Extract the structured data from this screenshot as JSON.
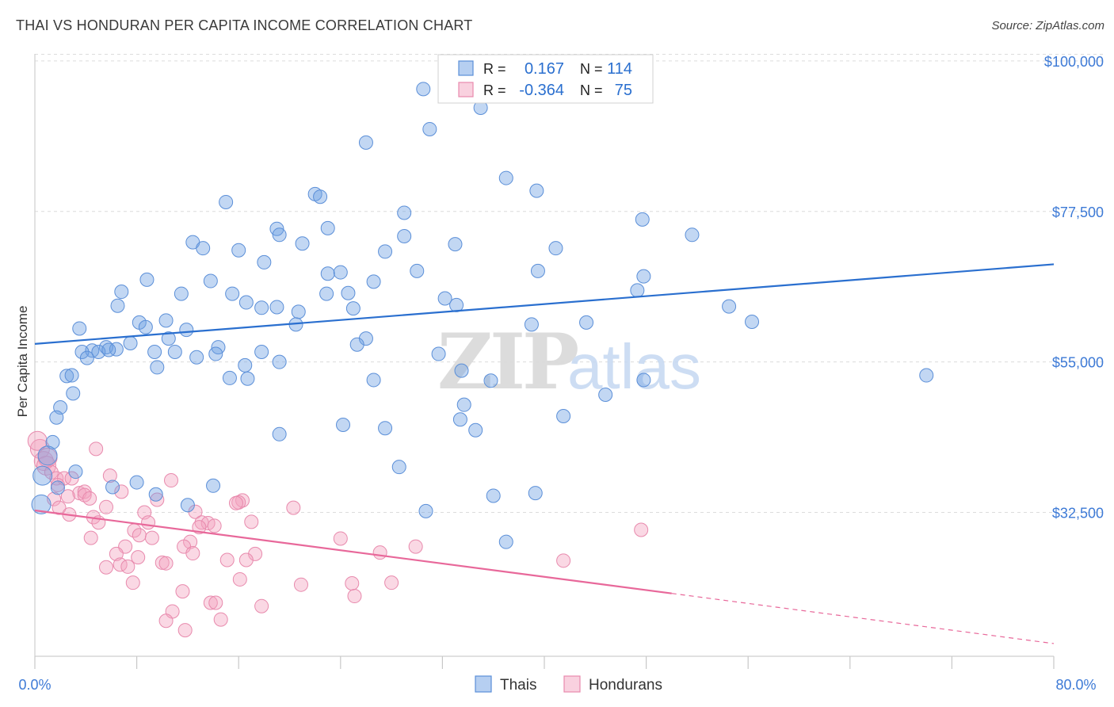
{
  "header": {
    "title": "THAI VS HONDURAN PER CAPITA INCOME CORRELATION CHART",
    "source": "Source: ZipAtlas.com"
  },
  "watermark": {
    "zip": "ZIP",
    "atlas": "atlas"
  },
  "colors": {
    "thais": "#6ea0e3",
    "thais_line": "#2a6fcf",
    "hondurans": "#f4a3bf",
    "hondurans_line": "#e8689a",
    "axis_label": "#3d7ad6",
    "grid": "#dcdcdc"
  },
  "stats_legend": [
    {
      "r_label": "R =",
      "r_value": "0.167",
      "n_label": "N =",
      "n_value": "114"
    },
    {
      "r_label": "R =",
      "r_value": "-0.364",
      "n_label": "N =",
      "n_value": "75"
    }
  ],
  "chart_data": {
    "type": "scatter",
    "ylabel": "Per Capita Income",
    "xlim": [
      0,
      80
    ],
    "ylim": [
      11000,
      102000
    ],
    "x_tick_labels": [
      "0.0%",
      "80.0%"
    ],
    "y_ticks": [
      {
        "value": 32500,
        "label": "$32,500"
      },
      {
        "value": 55000,
        "label": "$55,000"
      },
      {
        "value": 77500,
        "label": "$77,500"
      },
      {
        "value": 100000,
        "label": "$100,000"
      }
    ],
    "grid": true,
    "legend_position": "bottom",
    "series": [
      {
        "name": "Thais",
        "trend": {
          "x0": 0,
          "y0": 57700,
          "x1": 80,
          "y1": 69600
        },
        "points": [
          [
            30.5,
            95.8
          ],
          [
            35.0,
            93.0
          ],
          [
            31.0,
            89.8
          ],
          [
            26.0,
            87.8
          ],
          [
            37.0,
            82.5
          ],
          [
            39.4,
            80.6
          ],
          [
            22.0,
            80.1
          ],
          [
            22.4,
            79.7
          ],
          [
            15.0,
            78.9
          ],
          [
            29.0,
            77.3
          ],
          [
            47.7,
            76.3
          ],
          [
            19.0,
            74.9
          ],
          [
            23.0,
            75.0
          ],
          [
            29.0,
            73.8
          ],
          [
            51.6,
            74.0
          ],
          [
            19.2,
            74.0
          ],
          [
            21.0,
            72.7
          ],
          [
            33.0,
            72.6
          ],
          [
            12.4,
            72.9
          ],
          [
            13.2,
            72.0
          ],
          [
            40.9,
            72.0
          ],
          [
            16.0,
            71.7
          ],
          [
            27.5,
            71.5
          ],
          [
            18.0,
            69.9
          ],
          [
            30.0,
            68.6
          ],
          [
            39.5,
            68.6
          ],
          [
            23.0,
            68.2
          ],
          [
            24.0,
            68.4
          ],
          [
            47.8,
            67.8
          ],
          [
            8.8,
            67.3
          ],
          [
            13.8,
            67.1
          ],
          [
            26.6,
            67.0
          ],
          [
            6.8,
            65.5
          ],
          [
            11.5,
            65.2
          ],
          [
            15.5,
            65.2
          ],
          [
            22.9,
            65.2
          ],
          [
            24.6,
            65.3
          ],
          [
            47.3,
            65.7
          ],
          [
            32.2,
            64.5
          ],
          [
            16.6,
            63.9
          ],
          [
            6.5,
            63.4
          ],
          [
            17.8,
            63.1
          ],
          [
            19.0,
            63.2
          ],
          [
            25.0,
            63.0
          ],
          [
            33.1,
            63.5
          ],
          [
            20.7,
            62.5
          ],
          [
            54.5,
            63.3
          ],
          [
            56.3,
            61.0
          ],
          [
            10.3,
            61.2
          ],
          [
            8.2,
            60.9
          ],
          [
            8.7,
            60.2
          ],
          [
            20.5,
            60.6
          ],
          [
            39.0,
            60.6
          ],
          [
            43.3,
            60.9
          ],
          [
            3.5,
            60.0
          ],
          [
            11.9,
            59.8
          ],
          [
            26.0,
            58.5
          ],
          [
            10.5,
            58.5
          ],
          [
            7.5,
            57.8
          ],
          [
            25.3,
            57.6
          ],
          [
            5.6,
            57.2
          ],
          [
            14.4,
            57.2
          ],
          [
            4.5,
            56.7
          ],
          [
            6.4,
            56.9
          ],
          [
            3.7,
            56.5
          ],
          [
            5.0,
            56.5
          ],
          [
            5.8,
            56.8
          ],
          [
            9.4,
            56.5
          ],
          [
            11.0,
            56.5
          ],
          [
            17.8,
            56.5
          ],
          [
            4.1,
            55.6
          ],
          [
            12.7,
            55.7
          ],
          [
            14.2,
            56.2
          ],
          [
            31.7,
            56.2
          ],
          [
            16.5,
            54.5
          ],
          [
            19.2,
            55.0
          ],
          [
            9.6,
            54.2
          ],
          [
            33.5,
            53.7
          ],
          [
            2.5,
            52.9
          ],
          [
            2.9,
            53.0
          ],
          [
            15.3,
            52.6
          ],
          [
            16.7,
            52.5
          ],
          [
            26.6,
            52.3
          ],
          [
            47.8,
            52.3
          ],
          [
            35.8,
            52.2
          ],
          [
            70.0,
            53.0
          ],
          [
            3.0,
            50.3
          ],
          [
            44.8,
            50.1
          ],
          [
            2.0,
            48.2
          ],
          [
            33.7,
            48.6
          ],
          [
            1.7,
            46.7
          ],
          [
            33.4,
            46.4
          ],
          [
            41.5,
            46.9
          ],
          [
            24.2,
            45.6
          ],
          [
            27.5,
            45.1
          ],
          [
            19.2,
            44.2
          ],
          [
            34.6,
            44.8
          ],
          [
            1.4,
            43.0
          ],
          [
            1.0,
            41.0
          ],
          [
            28.6,
            39.3
          ],
          [
            36.0,
            35.0
          ],
          [
            39.3,
            35.4
          ],
          [
            30.7,
            32.7
          ],
          [
            37.0,
            28.1
          ],
          [
            0.5,
            33.7
          ],
          [
            0.6,
            38.0
          ],
          [
            9.5,
            35.2
          ],
          [
            12.0,
            33.6
          ],
          [
            3.2,
            38.6
          ],
          [
            6.1,
            36.3
          ],
          [
            1.8,
            36.2
          ],
          [
            8.0,
            37.0
          ],
          [
            14.0,
            36.5
          ]
        ]
      },
      {
        "name": "Hondurans",
        "trend": {
          "x0": 0,
          "y0": 32800,
          "x1": 50.0,
          "y1": 20400,
          "dash_x1": 80,
          "dash_y1": 12900
        },
        "points": [
          [
            0.4,
            42.0
          ],
          [
            4.8,
            42.0
          ],
          [
            0.7,
            40.2
          ],
          [
            0.9,
            39.5
          ],
          [
            1.3,
            38.5
          ],
          [
            5.9,
            38.0
          ],
          [
            1.7,
            37.6
          ],
          [
            2.3,
            37.6
          ],
          [
            2.9,
            37.6
          ],
          [
            10.7,
            37.3
          ],
          [
            1.8,
            36.6
          ],
          [
            6.8,
            35.6
          ],
          [
            3.5,
            35.4
          ],
          [
            3.9,
            35.6
          ],
          [
            3.9,
            35.1
          ],
          [
            2.6,
            34.9
          ],
          [
            4.3,
            34.6
          ],
          [
            1.5,
            34.5
          ],
          [
            9.6,
            34.4
          ],
          [
            16.3,
            34.3
          ],
          [
            16.0,
            34.0
          ],
          [
            15.8,
            33.9
          ],
          [
            20.3,
            33.2
          ],
          [
            1.9,
            33.2
          ],
          [
            2.7,
            32.2
          ],
          [
            12.6,
            32.6
          ],
          [
            8.6,
            32.5
          ],
          [
            5.6,
            33.3
          ],
          [
            4.6,
            31.8
          ],
          [
            5.0,
            31.0
          ],
          [
            8.9,
            31.0
          ],
          [
            13.1,
            31.0
          ],
          [
            13.6,
            30.9
          ],
          [
            12.9,
            30.3
          ],
          [
            14.1,
            30.5
          ],
          [
            17.0,
            31.1
          ],
          [
            7.8,
            29.8
          ],
          [
            8.2,
            29.1
          ],
          [
            9.2,
            28.7
          ],
          [
            4.4,
            28.7
          ],
          [
            12.2,
            28.1
          ],
          [
            24.0,
            28.6
          ],
          [
            11.7,
            27.4
          ],
          [
            7.1,
            27.4
          ],
          [
            6.4,
            26.3
          ],
          [
            12.4,
            26.4
          ],
          [
            17.3,
            26.3
          ],
          [
            27.1,
            26.5
          ],
          [
            29.9,
            27.4
          ],
          [
            41.5,
            25.3
          ],
          [
            47.6,
            29.9
          ],
          [
            8.1,
            25.8
          ],
          [
            15.1,
            25.4
          ],
          [
            16.6,
            25.4
          ],
          [
            10.0,
            25.0
          ],
          [
            10.3,
            24.9
          ],
          [
            6.7,
            24.7
          ],
          [
            5.6,
            24.3
          ],
          [
            7.3,
            24.4
          ],
          [
            16.1,
            22.5
          ],
          [
            7.7,
            22.0
          ],
          [
            20.9,
            21.7
          ],
          [
            24.9,
            21.9
          ],
          [
            28.0,
            22.0
          ],
          [
            11.6,
            20.7
          ],
          [
            25.1,
            20.0
          ],
          [
            13.8,
            19.0
          ],
          [
            14.2,
            19.0
          ],
          [
            17.8,
            18.5
          ],
          [
            10.8,
            17.7
          ],
          [
            10.3,
            16.3
          ],
          [
            14.6,
            16.5
          ],
          [
            11.8,
            14.9
          ],
          [
            0.2,
            43.2
          ],
          [
            1.0,
            40.7
          ]
        ]
      }
    ]
  },
  "bottom_legend": [
    {
      "label": "Thais"
    },
    {
      "label": "Hondurans"
    }
  ]
}
